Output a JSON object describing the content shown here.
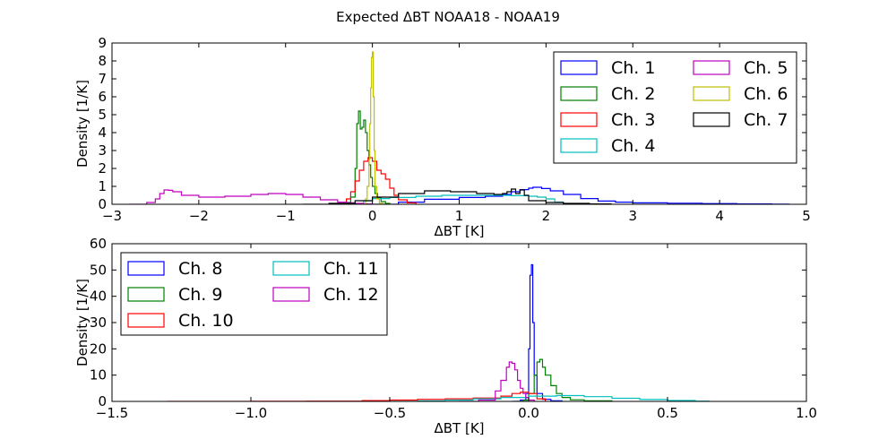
{
  "figure": {
    "title": "Expected ΔBT NOAA18 - NOAA19"
  },
  "chart_data": [
    {
      "type": "line",
      "drawstyle": "steps",
      "xlabel": "ΔBT [K]",
      "ylabel": "Density [1/K]",
      "xlim": [
        -3,
        5
      ],
      "ylim": [
        0,
        9
      ],
      "xticks": [
        -3,
        -2,
        -1,
        0,
        1,
        2,
        3,
        4,
        5
      ],
      "yticks": [
        0,
        1,
        2,
        3,
        4,
        5,
        6,
        7,
        8,
        9
      ],
      "grid": false,
      "legend": {
        "position": "top-right",
        "columns": 2
      },
      "series": [
        {
          "name": "Ch. 1",
          "color": "#0000ff",
          "x": [
            0.0,
            0.3,
            0.6,
            1.0,
            1.3,
            1.5,
            1.6,
            1.7,
            1.8,
            1.85,
            1.95,
            2.05,
            2.2,
            2.4,
            2.6,
            2.8,
            3.0,
            3.4,
            3.8,
            4.2,
            4.6,
            4.8
          ],
          "y": [
            0.0,
            0.12,
            0.28,
            0.38,
            0.45,
            0.55,
            0.7,
            0.82,
            0.9,
            0.95,
            0.88,
            0.75,
            0.55,
            0.32,
            0.18,
            0.12,
            0.08,
            0.06,
            0.04,
            0.02,
            0.01,
            0.0
          ]
        },
        {
          "name": "Ch. 2",
          "color": "#008000",
          "x": [
            -0.35,
            -0.3,
            -0.25,
            -0.2,
            -0.18,
            -0.16,
            -0.14,
            -0.12,
            -0.1,
            -0.08,
            -0.06,
            -0.04,
            -0.02,
            0.0,
            0.03,
            0.06,
            0.1,
            0.15,
            0.2
          ],
          "y": [
            0.0,
            0.1,
            0.4,
            2.0,
            4.5,
            5.2,
            4.2,
            4.3,
            4.7,
            4.0,
            3.0,
            2.2,
            1.5,
            1.0,
            0.6,
            0.35,
            0.15,
            0.05,
            0.0
          ]
        },
        {
          "name": "Ch. 3",
          "color": "#ff0000",
          "x": [
            -0.4,
            -0.3,
            -0.25,
            -0.2,
            -0.15,
            -0.1,
            -0.05,
            0.0,
            0.05,
            0.1,
            0.15,
            0.2,
            0.25,
            0.3,
            0.4,
            0.5
          ],
          "y": [
            0.0,
            0.3,
            0.7,
            1.3,
            1.9,
            2.4,
            2.6,
            2.4,
            1.9,
            1.7,
            1.4,
            0.9,
            0.5,
            0.25,
            0.08,
            0.0
          ]
        },
        {
          "name": "Ch. 4",
          "color": "#00bfbf",
          "x": [
            -0.3,
            -0.1,
            0.0,
            0.2,
            0.5,
            0.8,
            1.1,
            1.4,
            1.6,
            1.8,
            1.9,
            2.0,
            2.1,
            2.2
          ],
          "y": [
            0.0,
            0.2,
            0.32,
            0.38,
            0.45,
            0.5,
            0.5,
            0.5,
            0.48,
            0.45,
            0.4,
            0.3,
            0.12,
            0.0
          ]
        },
        {
          "name": "Ch. 5",
          "color": "#bf00bf",
          "x": [
            -2.8,
            -2.6,
            -2.5,
            -2.45,
            -2.4,
            -2.35,
            -2.3,
            -2.2,
            -2.0,
            -1.7,
            -1.4,
            -1.2,
            -1.0,
            -0.8,
            -0.6,
            -0.4,
            -0.3,
            -0.2,
            -0.1,
            0.0
          ],
          "y": [
            0.0,
            0.1,
            0.3,
            0.6,
            0.8,
            0.78,
            0.7,
            0.5,
            0.4,
            0.45,
            0.55,
            0.6,
            0.55,
            0.4,
            0.25,
            0.12,
            0.08,
            0.05,
            0.02,
            0.0
          ]
        },
        {
          "name": "Ch. 6",
          "color": "#bfbf00",
          "x": [
            -0.12,
            -0.08,
            -0.06,
            -0.04,
            -0.03,
            -0.02,
            -0.01,
            0.0,
            0.01,
            0.02,
            0.03,
            0.05,
            0.08,
            0.12
          ],
          "y": [
            0.0,
            0.3,
            1.0,
            2.5,
            4.5,
            6.5,
            8.2,
            8.5,
            6.0,
            3.0,
            1.0,
            0.3,
            0.05,
            0.0
          ]
        },
        {
          "name": "Ch. 7",
          "color": "#000000",
          "x": [
            -0.8,
            -0.5,
            -0.2,
            0.0,
            0.3,
            0.6,
            0.9,
            1.2,
            1.4,
            1.5,
            1.55,
            1.6,
            1.65,
            1.7,
            1.75,
            1.8,
            2.0,
            2.2,
            2.5,
            2.75
          ],
          "y": [
            0.0,
            0.05,
            0.2,
            0.4,
            0.6,
            0.75,
            0.7,
            0.6,
            0.55,
            0.6,
            0.7,
            0.85,
            0.6,
            0.8,
            0.5,
            0.2,
            0.1,
            0.05,
            0.02,
            0.0
          ]
        }
      ]
    },
    {
      "type": "line",
      "drawstyle": "steps",
      "xlabel": "ΔBT [K]",
      "ylabel": "Density [1/K]",
      "xlim": [
        -1.5,
        1.0
      ],
      "ylim": [
        0,
        60
      ],
      "xticks": [
        -1.5,
        -1.0,
        -0.5,
        0.0,
        0.5,
        1.0
      ],
      "xtick_labels": [
        "−1.5",
        "−1.0",
        "−0.5",
        "0.0",
        "0.5",
        "1.0"
      ],
      "yticks": [
        0,
        10,
        20,
        30,
        40,
        50,
        60
      ],
      "grid": false,
      "legend": {
        "position": "top-left",
        "columns": 2
      },
      "series": [
        {
          "name": "Ch. 8",
          "color": "#0000ff",
          "x": [
            -0.06,
            -0.03,
            -0.01,
            0.0,
            0.005,
            0.01,
            0.015,
            0.02,
            0.03,
            0.05,
            0.08,
            0.12
          ],
          "y": [
            0.0,
            0.5,
            3.0,
            20.0,
            48.0,
            52.0,
            30.0,
            10.0,
            3.0,
            0.8,
            0.2,
            0.0
          ]
        },
        {
          "name": "Ch. 9",
          "color": "#008000",
          "x": [
            -0.05,
            -0.02,
            0.0,
            0.02,
            0.03,
            0.04,
            0.05,
            0.06,
            0.08,
            0.1,
            0.12,
            0.15,
            0.2,
            0.3
          ],
          "y": [
            0.0,
            0.5,
            3.0,
            10.0,
            15.0,
            16.0,
            13.0,
            10.0,
            6.0,
            3.0,
            1.5,
            0.6,
            0.2,
            0.0
          ]
        },
        {
          "name": "Ch. 10",
          "color": "#ff0000",
          "x": [
            -1.3,
            -1.0,
            -0.8,
            -0.6,
            -0.5,
            -0.4,
            -0.3,
            -0.2,
            -0.1,
            -0.06,
            -0.03,
            0.0,
            0.03,
            0.06
          ],
          "y": [
            0.0,
            0.05,
            0.1,
            0.3,
            0.5,
            0.8,
            1.0,
            1.3,
            2.0,
            3.0,
            3.5,
            3.0,
            1.0,
            0.0
          ]
        },
        {
          "name": "Ch. 11",
          "color": "#00bfbf",
          "x": [
            -0.5,
            -0.4,
            -0.3,
            -0.2,
            -0.1,
            0.0,
            0.1,
            0.2,
            0.3,
            0.4,
            0.5,
            0.6,
            0.65
          ],
          "y": [
            0.0,
            0.2,
            0.5,
            1.0,
            1.5,
            2.0,
            2.2,
            1.8,
            1.2,
            0.7,
            0.35,
            0.1,
            0.0
          ]
        },
        {
          "name": "Ch. 12",
          "color": "#bf00bf",
          "x": [
            -0.25,
            -0.18,
            -0.12,
            -0.1,
            -0.08,
            -0.07,
            -0.06,
            -0.05,
            -0.04,
            -0.03,
            -0.02,
            -0.01,
            0.0,
            0.02
          ],
          "y": [
            0.0,
            0.5,
            4.0,
            8.0,
            13.0,
            15.0,
            14.5,
            12.0,
            8.0,
            5.0,
            3.0,
            1.5,
            0.5,
            0.0
          ]
        }
      ]
    }
  ]
}
